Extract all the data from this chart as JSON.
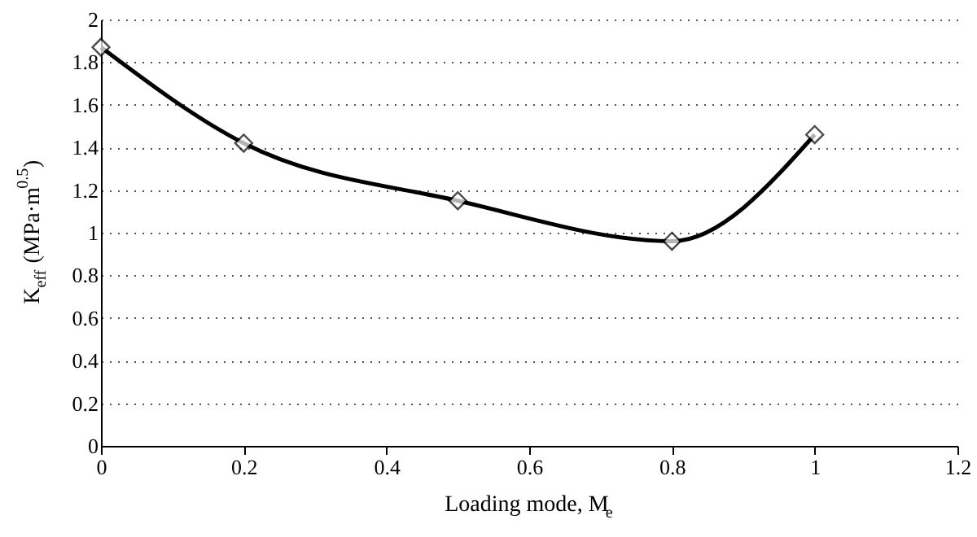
{
  "chart_data": {
    "type": "line",
    "xlabel": "Loading mode, M$_{e}$",
    "ylabel": "K$_{eff}$ (MPa·m$^{0.5}$)",
    "x": [
      0,
      0.2,
      0.5,
      0.8,
      1
    ],
    "series": [
      {
        "color": "#000000",
        "values": [
          1.87,
          1.42,
          1.15,
          0.96,
          1.46
        ]
      }
    ],
    "xlim": [
      0,
      1.2
    ],
    "xticks": [
      0,
      0.2,
      0.4,
      0.6,
      0.8,
      1,
      1.2
    ],
    "ylim": [
      0,
      2
    ],
    "yticks": [
      0,
      0.2,
      0.4,
      0.6,
      0.8,
      1,
      1.2,
      1.4,
      1.6,
      1.8,
      2
    ],
    "grid": "y",
    "marker": "diamond",
    "line_style": "solid"
  }
}
